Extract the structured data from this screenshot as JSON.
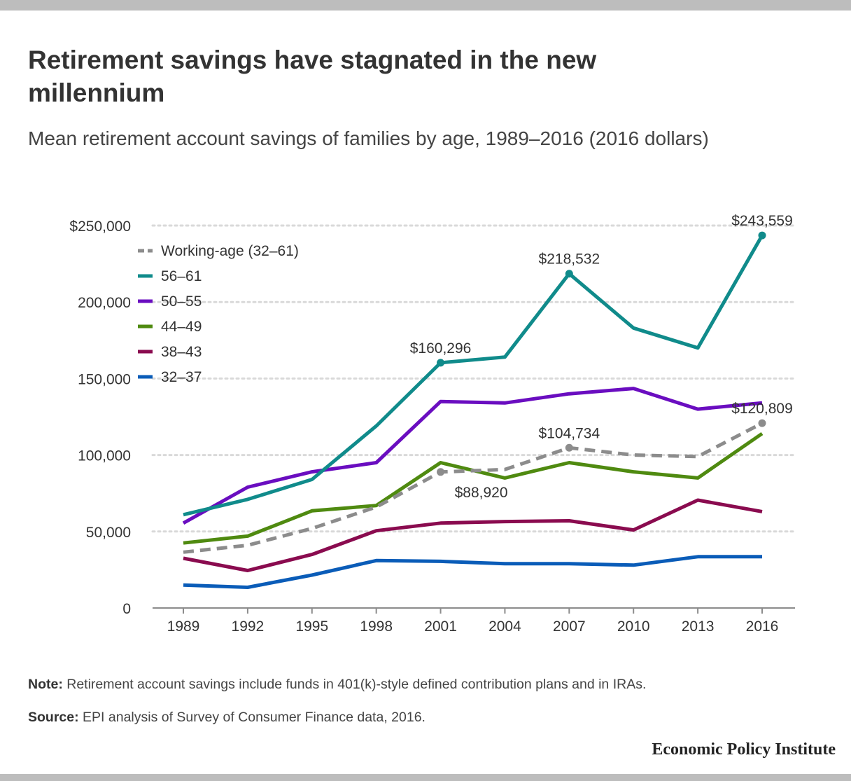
{
  "title": "Retirement savings have stagnated in the new millennium",
  "subtitle": "Mean retirement account savings of families by age, 1989–2016 (2016 dollars)",
  "note": {
    "label": "Note:",
    "text": " Retirement account savings include funds in 401(k)-style defined contribution plans and in IRAs."
  },
  "source": {
    "label": "Source:",
    "text": " EPI analysis of Survey of Consumer Finance data, 2016."
  },
  "brand": "Economic Policy Institute",
  "chart_data": {
    "type": "line",
    "x": [
      1989,
      1992,
      1995,
      1998,
      2001,
      2004,
      2007,
      2010,
      2013,
      2016
    ],
    "ylim": [
      0,
      250000
    ],
    "y_ticks": [
      0,
      50000,
      100000,
      150000,
      200000,
      250000
    ],
    "y_tick_labels": [
      "0",
      "50,000",
      "100,000",
      "150,000",
      "200,000",
      "$250,000"
    ],
    "grid": "horizontal-dotted",
    "legend_position": "top-left",
    "series": [
      {
        "name": "Working-age (32–61)",
        "color": "#8c8c8c",
        "dashed": true,
        "values": [
          36500,
          41000,
          52000,
          66000,
          88920,
          90500,
          104734,
          100000,
          99000,
          120809
        ]
      },
      {
        "name": "56–61",
        "color": "#108b8b",
        "dashed": false,
        "values": [
          61000,
          71000,
          84000,
          119000,
          160296,
          164000,
          218532,
          183000,
          170000,
          243559
        ]
      },
      {
        "name": "50–55",
        "color": "#6a0dc0",
        "dashed": false,
        "values": [
          55500,
          79000,
          89000,
          95000,
          135000,
          134000,
          140000,
          143500,
          130000,
          134000
        ]
      },
      {
        "name": "44–49",
        "color": "#4f8a10",
        "dashed": false,
        "values": [
          42500,
          47000,
          63500,
          67000,
          95000,
          85000,
          95000,
          89000,
          85000,
          114000
        ]
      },
      {
        "name": "38–43",
        "color": "#8a0b4f",
        "dashed": false,
        "values": [
          32500,
          24500,
          35000,
          50500,
          55500,
          56500,
          57000,
          51000,
          70500,
          63000
        ]
      },
      {
        "name": "32–37",
        "color": "#0a5cb8",
        "dashed": false,
        "values": [
          15000,
          13500,
          21500,
          31000,
          30500,
          29000,
          29000,
          28000,
          33500,
          33500
        ]
      }
    ],
    "annotations": [
      {
        "series": 1,
        "x": 2001,
        "text": "$160,296",
        "dot": true,
        "pos": "above"
      },
      {
        "series": 1,
        "x": 2007,
        "text": "$218,532",
        "dot": true,
        "pos": "above"
      },
      {
        "series": 1,
        "x": 2016,
        "text": "$243,559",
        "dot": true,
        "pos": "above"
      },
      {
        "series": 0,
        "x": 2001,
        "text": "$88,920",
        "dot": true,
        "pos": "below"
      },
      {
        "series": 0,
        "x": 2007,
        "text": "$104,734",
        "dot": true,
        "pos": "above"
      },
      {
        "series": 0,
        "x": 2016,
        "text": "$120,809",
        "dot": true,
        "pos": "above"
      }
    ]
  }
}
